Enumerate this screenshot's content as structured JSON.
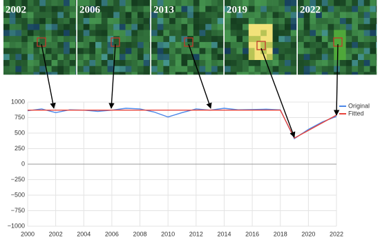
{
  "image_labels": [
    "2002",
    "2006",
    "2013",
    "2019",
    "2022"
  ],
  "chart_data": {
    "type": "line",
    "x": [
      2000,
      2001,
      2002,
      2003,
      2004,
      2005,
      2006,
      2007,
      2008,
      2009,
      2010,
      2011,
      2012,
      2013,
      2014,
      2015,
      2016,
      2017,
      2018,
      2019,
      2020,
      2021,
      2022
    ],
    "series": [
      {
        "name": "Original",
        "color": "#4a86e8",
        "values": [
          860,
          890,
          830,
          875,
          870,
          850,
          870,
          900,
          890,
          840,
          760,
          830,
          890,
          870,
          900,
          875,
          880,
          885,
          875,
          410,
          560,
          680,
          770
        ]
      },
      {
        "name": "Fitted",
        "color": "#e8423a",
        "values": [
          870,
          870,
          870,
          870,
          870,
          870,
          870,
          870,
          870,
          870,
          870,
          870,
          870,
          870,
          870,
          870,
          870,
          870,
          870,
          420,
          543,
          667,
          790
        ]
      }
    ],
    "xlim": [
      2000,
      2022
    ],
    "xticks": [
      2000,
      2002,
      2004,
      2006,
      2008,
      2010,
      2012,
      2014,
      2016,
      2018,
      2020,
      2022
    ],
    "ylim": [
      -1000,
      1000
    ],
    "yticks": [
      {
        "value": -1000,
        "label": "−1000"
      },
      {
        "value": -750,
        "label": "−750"
      },
      {
        "value": -500,
        "label": "−500"
      },
      {
        "value": -250,
        "label": "−250"
      },
      0,
      250,
      500,
      750,
      1000
    ],
    "grid": true,
    "legend": "right"
  }
}
